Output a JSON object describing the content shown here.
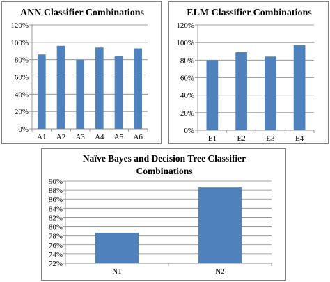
{
  "chart_data": [
    {
      "type": "bar",
      "title": "ANN Classifier Combinations",
      "categories": [
        "A1",
        "A2",
        "A3",
        "A4",
        "A5",
        "A6"
      ],
      "values": [
        86,
        96,
        80,
        94,
        84,
        93
      ],
      "ylim": [
        0,
        120
      ],
      "yticks": [
        "0%",
        "20%",
        "40%",
        "60%",
        "80%",
        "100%",
        "120%"
      ],
      "grid": true,
      "color": "#4f81bd"
    },
    {
      "type": "bar",
      "title": "ELM Classifier Combinations",
      "categories": [
        "E1",
        "E2",
        "E3",
        "E4"
      ],
      "values": [
        80,
        89,
        84,
        97
      ],
      "ylim": [
        0,
        120
      ],
      "yticks": [
        "0%",
        "20%",
        "40%",
        "60%",
        "80%",
        "100%",
        "120%"
      ],
      "grid": true,
      "color": "#4f81bd"
    },
    {
      "type": "bar",
      "title": "Naïve Bayes and Decision Tree Classifier Combinations",
      "title_lines": [
        "Naïve Bayes and Decision Tree Classifier",
        "Combinations"
      ],
      "categories": [
        "N1",
        "N2"
      ],
      "values": [
        78.7,
        88.6
      ],
      "ylim": [
        72,
        90
      ],
      "yticks": [
        "72%",
        "74%",
        "76%",
        "78%",
        "80%",
        "82%",
        "84%",
        "86%",
        "88%",
        "90%"
      ],
      "grid": true,
      "color": "#4f81bd"
    }
  ]
}
